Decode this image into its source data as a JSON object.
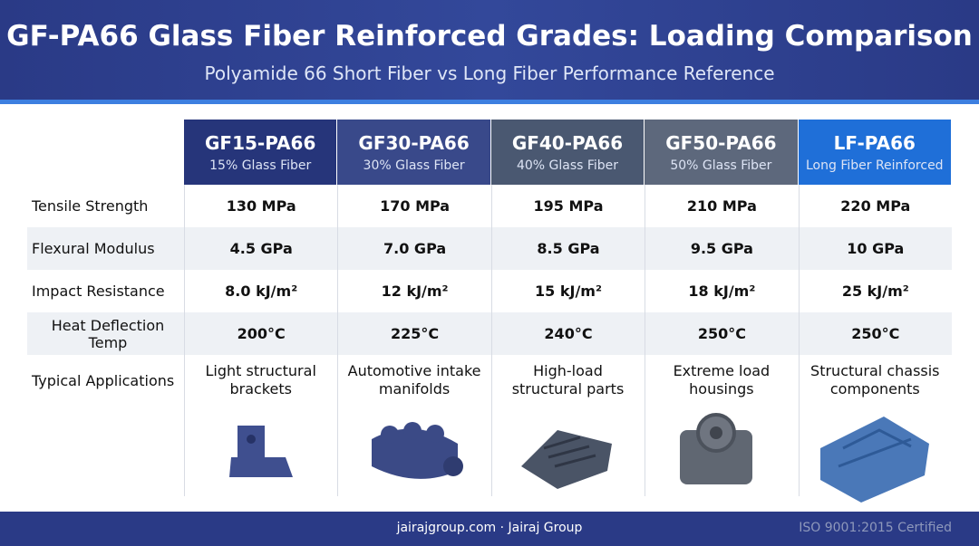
{
  "header": {
    "title": "GF-PA66 Glass Fiber Reinforced Grades: Loading Comparison",
    "subtitle": "Polyamide 66 Short Fiber vs Long Fiber Performance Reference"
  },
  "table": {
    "columns": [
      {
        "name": "GF15-PA66",
        "sub": "15% Glass Fiber"
      },
      {
        "name": "GF30-PA66",
        "sub": "30% Glass Fiber"
      },
      {
        "name": "GF40-PA66",
        "sub": "40% Glass Fiber"
      },
      {
        "name": "GF50-PA66",
        "sub": "50% Glass Fiber"
      },
      {
        "name": "LF-PA66",
        "sub": "Long Fiber Reinforced"
      }
    ],
    "rows": [
      {
        "label": "Tensile Strength",
        "cells": [
          "130 MPa",
          "170 MPa",
          "195 MPa",
          "210 MPa",
          "220 MPa"
        ]
      },
      {
        "label": "Flexural Modulus",
        "cells": [
          "4.5 GPa",
          "7.0 GPa",
          "8.5 GPa",
          "9.5 GPa",
          "10 GPa"
        ]
      },
      {
        "label": "Impact Resistance",
        "cells": [
          "8.0 kJ/m²",
          "12 kJ/m²",
          "15 kJ/m²",
          "18 kJ/m²",
          "25 kJ/m²"
        ]
      },
      {
        "label": "Heat Deflection Temp",
        "cells": [
          "200°C",
          "225°C",
          "240°C",
          "250°C",
          "250°C"
        ]
      }
    ],
    "applications": {
      "label": "Typical Applications",
      "cells": [
        "Light structural brackets",
        "Automotive intake manifolds",
        "High-load structural parts",
        "Extreme load housings",
        "Structural chassis components"
      ]
    }
  },
  "footer": {
    "site": "jairajgroup.com · Jairaj Group",
    "cert": "ISO 9001:2015 Certified"
  }
}
